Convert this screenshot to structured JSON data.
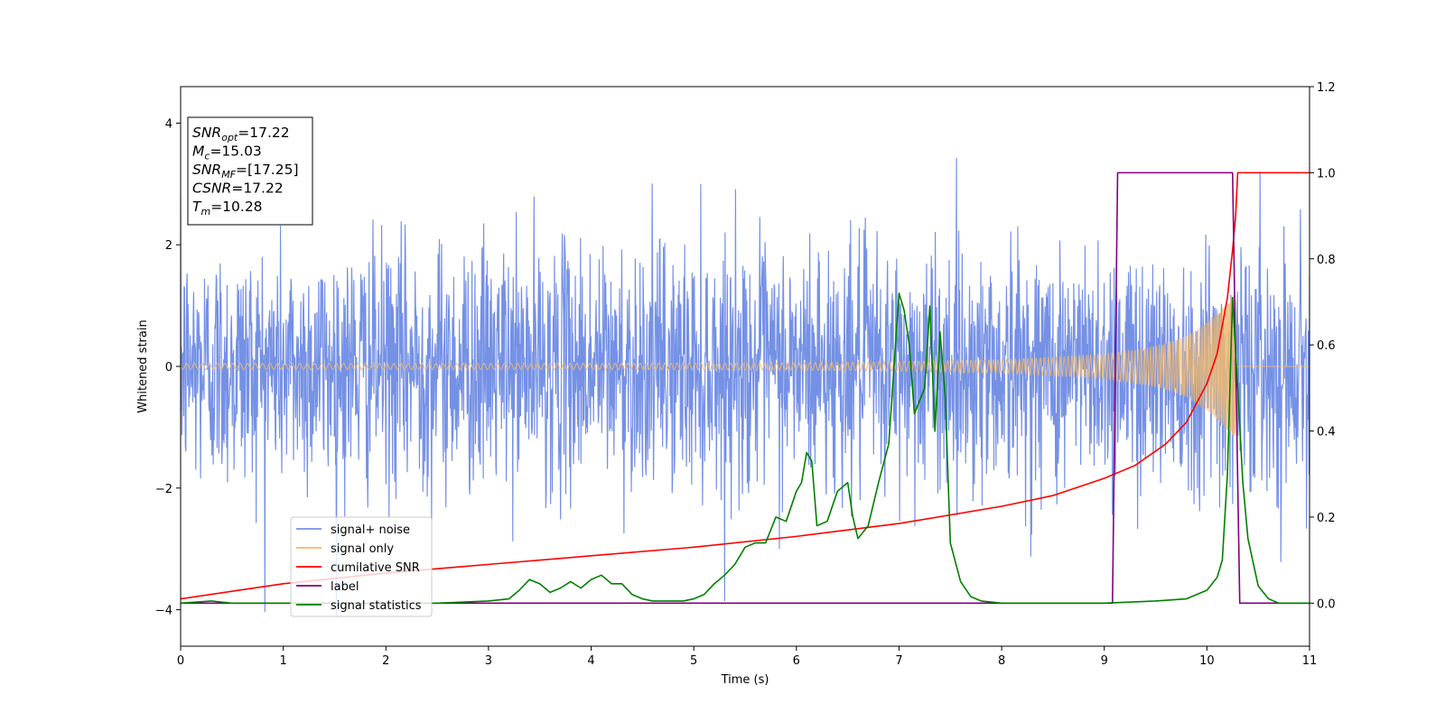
{
  "chart_data": {
    "type": "line",
    "title": "",
    "xlabel": "Time (s)",
    "ylabel": "Whitened strain",
    "xlim": [
      0,
      11
    ],
    "ylim": [
      -4.6,
      4.6
    ],
    "y2lim": [
      -0.1,
      1.2
    ],
    "xticks": [
      "0",
      "1",
      "2",
      "3",
      "4",
      "5",
      "6",
      "7",
      "8",
      "9",
      "10",
      "11"
    ],
    "yticks": [
      "−4",
      "−2",
      "0",
      "2",
      "4"
    ],
    "y2ticks": [
      "0.0",
      "0.2",
      "0.4",
      "0.6",
      "0.8",
      "1.0",
      "1.2"
    ],
    "grid": false,
    "legend_position": "lower-left",
    "annotation": {
      "lines": [
        {
          "name": "SNR",
          "sub": "opt",
          "value": "=17.22"
        },
        {
          "name": "M",
          "sub": "c",
          "value": "=15.03"
        },
        {
          "name": "SNR",
          "sub": "MF",
          "value": "=[17.25]"
        },
        {
          "name": "CSNR",
          "sub": "",
          "value": "=17.22"
        },
        {
          "name": "T",
          "sub": "m",
          "value": "=10.28"
        }
      ]
    },
    "series": [
      {
        "name": "signal+ noise",
        "color": "#7591e6",
        "axis": "left",
        "description": "noise envelope",
        "envelope_upper_typical": 1.5,
        "envelope_lower_typical": -1.5,
        "peak_max": 4.18,
        "peak_min": -4.12
      },
      {
        "name": "signal only",
        "color": "#f0b870",
        "axis": "left",
        "amplitude_points": {
          "x": [
            0,
            2,
            4,
            6,
            7,
            8,
            8.5,
            9,
            9.3,
            9.6,
            9.8,
            10.0,
            10.15,
            10.25,
            10.28
          ],
          "y": [
            0.05,
            0.05,
            0.05,
            0.06,
            0.08,
            0.11,
            0.15,
            0.2,
            0.27,
            0.37,
            0.5,
            0.72,
            0.95,
            1.15,
            1.22
          ]
        }
      },
      {
        "name": "cumilative SNR",
        "color": "#ff0000",
        "axis": "right",
        "x": [
          0,
          1,
          2,
          3,
          4,
          5,
          6,
          7,
          8,
          8.5,
          9,
          9.3,
          9.6,
          9.8,
          10.0,
          10.1,
          10.2,
          10.25,
          10.28,
          10.3,
          11
        ],
        "y": [
          0.01,
          0.045,
          0.07,
          0.09,
          0.11,
          0.13,
          0.155,
          0.185,
          0.225,
          0.25,
          0.29,
          0.32,
          0.37,
          0.42,
          0.51,
          0.58,
          0.71,
          0.82,
          0.9,
          1.0,
          1.0
        ]
      },
      {
        "name": "label",
        "color": "#800080",
        "axis": "right",
        "x": [
          0,
          9.08,
          9.13,
          10.25,
          10.32,
          11
        ],
        "y": [
          0,
          0,
          1,
          1,
          0,
          0
        ]
      },
      {
        "name": "signal statistics",
        "color": "#008000",
        "axis": "right",
        "x": [
          0,
          0.3,
          0.5,
          1,
          2,
          2.5,
          3,
          3.2,
          3.3,
          3.4,
          3.5,
          3.6,
          3.7,
          3.8,
          3.9,
          4.0,
          4.1,
          4.2,
          4.3,
          4.4,
          4.5,
          4.6,
          4.8,
          4.9,
          5.0,
          5.1,
          5.2,
          5.3,
          5.4,
          5.5,
          5.6,
          5.7,
          5.8,
          5.9,
          6.0,
          6.05,
          6.1,
          6.15,
          6.2,
          6.3,
          6.4,
          6.5,
          6.55,
          6.6,
          6.7,
          6.8,
          6.9,
          7.0,
          7.05,
          7.1,
          7.15,
          7.25,
          7.3,
          7.35,
          7.4,
          7.45,
          7.5,
          7.6,
          7.7,
          7.8,
          8.0,
          8.5,
          9.0,
          9.5,
          9.8,
          10.0,
          10.1,
          10.15,
          10.2,
          10.25,
          10.3,
          10.35,
          10.4,
          10.5,
          10.6,
          10.7,
          11
        ],
        "y": [
          0.0,
          0.005,
          0.0,
          0.0,
          0.0,
          0.0,
          0.005,
          0.01,
          0.03,
          0.055,
          0.045,
          0.025,
          0.035,
          0.05,
          0.035,
          0.055,
          0.065,
          0.045,
          0.045,
          0.02,
          0.01,
          0.005,
          0.005,
          0.005,
          0.01,
          0.02,
          0.045,
          0.065,
          0.09,
          0.13,
          0.14,
          0.14,
          0.2,
          0.19,
          0.26,
          0.28,
          0.35,
          0.33,
          0.18,
          0.19,
          0.26,
          0.28,
          0.2,
          0.15,
          0.18,
          0.28,
          0.37,
          0.72,
          0.68,
          0.6,
          0.44,
          0.5,
          0.69,
          0.4,
          0.63,
          0.48,
          0.14,
          0.05,
          0.015,
          0.005,
          0.0,
          0.0,
          0.0,
          0.005,
          0.01,
          0.03,
          0.06,
          0.1,
          0.3,
          0.71,
          0.5,
          0.28,
          0.15,
          0.04,
          0.01,
          0.0,
          0.0
        ]
      }
    ]
  }
}
